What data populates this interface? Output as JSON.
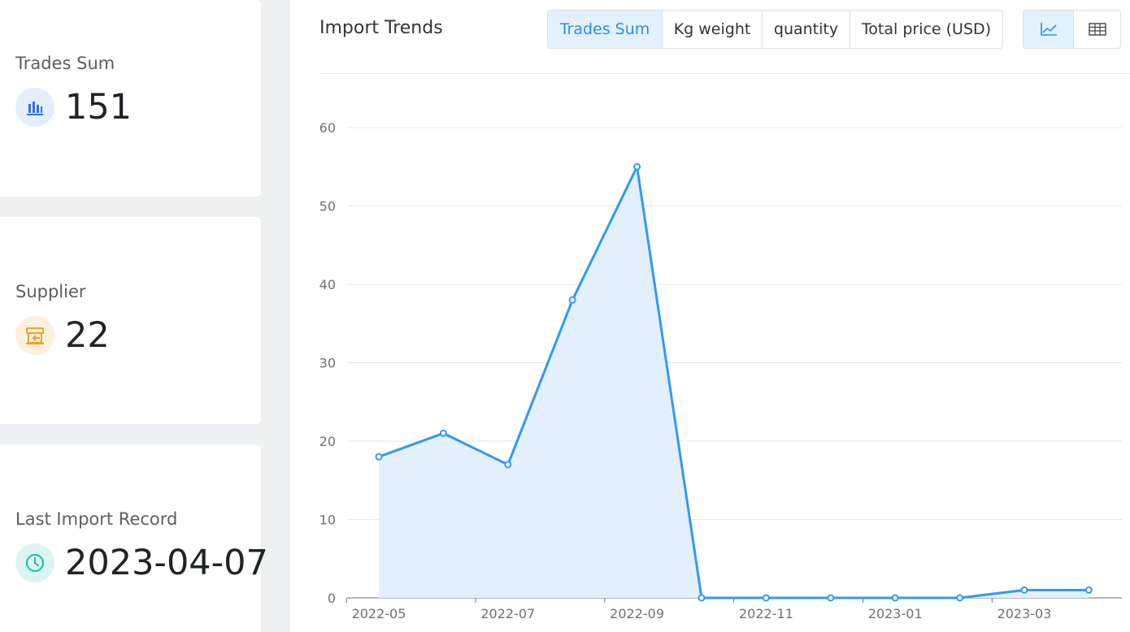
{
  "stats": {
    "trades": {
      "label": "Trades Sum",
      "value": "151",
      "icon": "bar-chart-icon"
    },
    "supplier": {
      "label": "Supplier",
      "value": "22",
      "icon": "store-icon"
    },
    "last_import": {
      "label": "Last Import Record",
      "value": "2023-04-07",
      "icon": "clock-icon"
    }
  },
  "panel": {
    "title": "Import Trends",
    "metric_tabs": [
      "Trades Sum",
      "Kg weight",
      "quantity",
      "Total price (USD)"
    ],
    "active_tab": "Trades Sum",
    "view_buttons": [
      {
        "icon": "line-chart-icon",
        "active": true
      },
      {
        "icon": "table-icon",
        "active": false
      }
    ]
  },
  "colors": {
    "accent": "#2d8ce6",
    "line": "#3399f0",
    "area": "#e3f0fc",
    "blue_icon": "#2f6fe0",
    "orange_icon": "#f0a21f",
    "teal_icon": "#17b9a7"
  },
  "chart_data": {
    "type": "area",
    "x": [
      "2022-05",
      "2022-06",
      "2022-07",
      "2022-08",
      "2022-09",
      "2022-10",
      "2022-11",
      "2022-12",
      "2023-01",
      "2023-02",
      "2023-03",
      "2023-04"
    ],
    "series": [
      {
        "values": [
          18,
          21,
          17,
          38,
          55,
          0,
          0,
          0,
          0,
          0,
          1,
          1
        ]
      }
    ],
    "x_tick_labels": [
      "2022-05",
      "2022-07",
      "2022-09",
      "2022-11",
      "2023-01",
      "2023-03"
    ],
    "y_ticks": [
      0,
      10,
      20,
      30,
      40,
      50,
      60
    ],
    "ylim": [
      0,
      60
    ],
    "grid": true
  }
}
